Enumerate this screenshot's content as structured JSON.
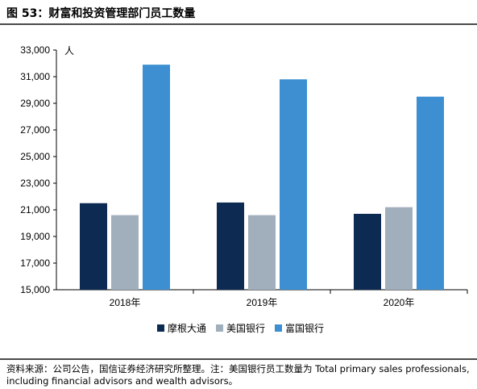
{
  "title": "图 53：财富和投资管理部门员工数量",
  "note": "资料来源：公司公告，国信证券经济研究所整理。注：美国银行员工数量为 Total primary sales professionals, including financial advisors and wealth advisors。",
  "chart_data": {
    "type": "bar",
    "unit_label": "人",
    "categories": [
      "2018年",
      "2019年",
      "2020年"
    ],
    "series": [
      {
        "name": "摩根大通",
        "color": "#0d2a52",
        "values": [
          21500,
          21550,
          20700
        ]
      },
      {
        "name": "美国银行",
        "color": "#a1afbd",
        "values": [
          20600,
          20600,
          21200
        ]
      },
      {
        "name": "富国银行",
        "color": "#3d8fd1",
        "values": [
          31900,
          30800,
          29500
        ]
      }
    ],
    "ylim": [
      15000,
      33000
    ],
    "yticks": [
      "15,000",
      "17,000",
      "19,000",
      "21,000",
      "23,000",
      "25,000",
      "27,000",
      "29,000",
      "31,000",
      "33,000"
    ],
    "legend_position": "bottom",
    "grid": false
  }
}
